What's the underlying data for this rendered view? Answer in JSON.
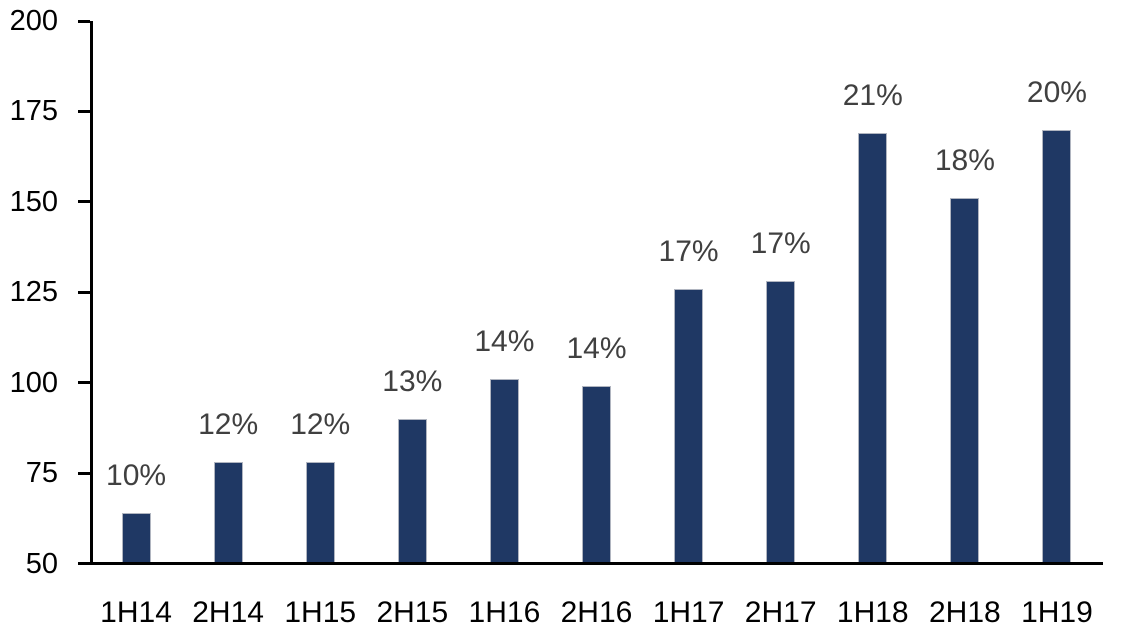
{
  "chart_data": {
    "type": "bar",
    "title": "",
    "xlabel": "",
    "ylabel": "",
    "categories": [
      "1H14",
      "2H14",
      "1H15",
      "2H15",
      "1H16",
      "2H16",
      "1H17",
      "2H17",
      "1H18",
      "2H18",
      "1H19"
    ],
    "values": [
      64,
      78,
      78,
      90,
      101,
      99,
      126,
      128,
      169,
      151,
      170
    ],
    "bar_labels": [
      "10%",
      "12%",
      "12%",
      "13%",
      "14%",
      "14%",
      "17%",
      "17%",
      "21%",
      "18%",
      "20%"
    ],
    "ylim": [
      50,
      200
    ],
    "yticks": [
      50,
      75,
      100,
      125,
      150,
      175,
      200
    ],
    "grid": false,
    "legend": false,
    "colors": {
      "bar_fill": "#1F3864",
      "bar_border": "#B0B5C0",
      "data_label": "#404040",
      "axis_text": "#000000",
      "axis_line": "#000000",
      "background": "#FFFFFF"
    }
  }
}
